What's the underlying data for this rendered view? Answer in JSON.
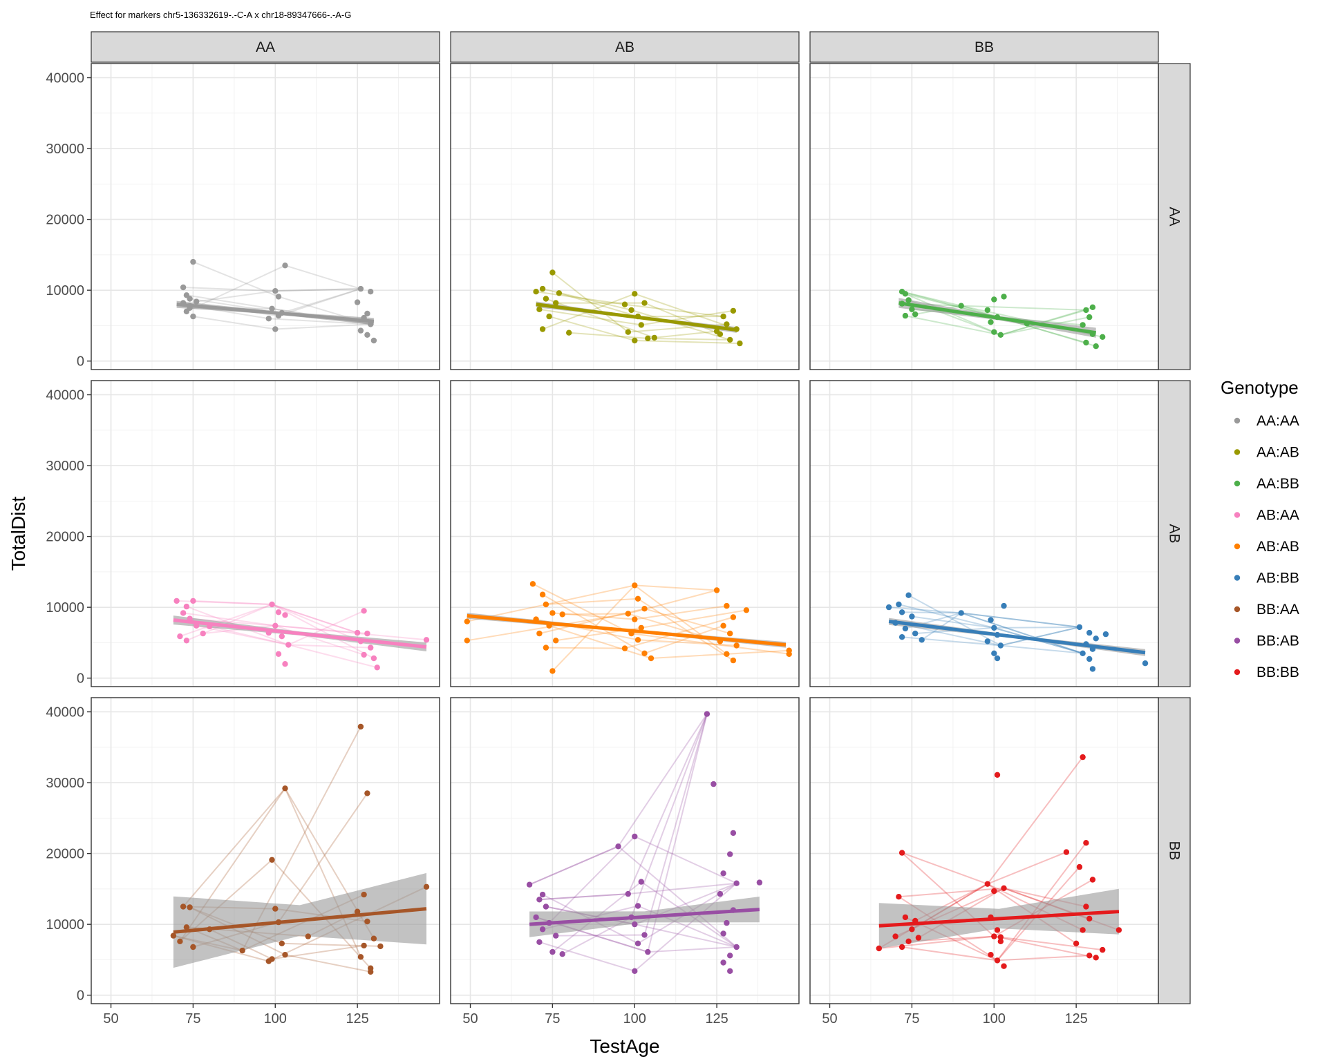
{
  "chart_data": {
    "type": "scatter",
    "title": "Effect for markers chr5-136332619-.-C-A x chr18-89347666-.-A-G",
    "xlabel": "TestAge",
    "ylabel": "TotalDist",
    "xlim": [
      44,
      150
    ],
    "ylim": [
      -1200,
      42000
    ],
    "x_ticks": [
      50,
      75,
      100,
      125
    ],
    "y_ticks": [
      0,
      10000,
      20000,
      30000,
      40000
    ],
    "x_tick_labels": [
      "50",
      "75",
      "100",
      "125"
    ],
    "y_tick_labels": [
      "0",
      "10000",
      "20000",
      "30000",
      "40000"
    ],
    "grid": true,
    "facet_cols": [
      "AA",
      "AB",
      "BB"
    ],
    "facet_rows": [
      "AA",
      "AB",
      "BB"
    ],
    "legend": {
      "title": "Genotype",
      "position": "right"
    },
    "series": [
      {
        "name": "AA:AA",
        "row": 0,
        "col": 0,
        "color": "#999999",
        "fit": {
          "x": [
            70,
            130
          ],
          "y": [
            8000,
            5600
          ]
        },
        "band": 350,
        "points": [
          [
            72,
            10400
          ],
          [
            73,
            9300
          ],
          [
            74,
            8800
          ],
          [
            75,
            14000
          ],
          [
            72,
            8200
          ],
          [
            74,
            7800
          ],
          [
            73,
            7000
          ],
          [
            75,
            6300
          ],
          [
            76,
            8400
          ],
          [
            74,
            7500
          ],
          [
            100,
            9900
          ],
          [
            101,
            9100
          ],
          [
            103,
            13500
          ],
          [
            99,
            7400
          ],
          [
            101,
            6400
          ],
          [
            100,
            4500
          ],
          [
            102,
            6800
          ],
          [
            98,
            6000
          ],
          [
            126,
            10200
          ],
          [
            129,
            9800
          ],
          [
            125,
            8300
          ],
          [
            128,
            6700
          ],
          [
            127,
            5900
          ],
          [
            129,
            5200
          ],
          [
            126,
            4300
          ],
          [
            128,
            3700
          ],
          [
            130,
            2900
          ],
          [
            127,
            6100
          ]
        ]
      },
      {
        "name": "AA:AB",
        "row": 0,
        "col": 1,
        "color": "#999900",
        "fit": {
          "x": [
            70,
            131
          ],
          "y": [
            8000,
            4400
          ]
        },
        "band": 300,
        "points": [
          [
            70,
            9800
          ],
          [
            72,
            10200
          ],
          [
            75,
            12500
          ],
          [
            73,
            8800
          ],
          [
            76,
            8200
          ],
          [
            71,
            7300
          ],
          [
            74,
            6300
          ],
          [
            72,
            4500
          ],
          [
            77,
            9600
          ],
          [
            80,
            4000
          ],
          [
            97,
            8000
          ],
          [
            100,
            9500
          ],
          [
            103,
            8200
          ],
          [
            99,
            7200
          ],
          [
            101,
            6300
          ],
          [
            102,
            5100
          ],
          [
            98,
            4100
          ],
          [
            104,
            3200
          ],
          [
            100,
            2900
          ],
          [
            106,
            3300
          ],
          [
            127,
            6300
          ],
          [
            130,
            7100
          ],
          [
            128,
            5200
          ],
          [
            131,
            4500
          ],
          [
            126,
            3800
          ],
          [
            129,
            3000
          ],
          [
            132,
            2500
          ],
          [
            125,
            4200
          ]
        ]
      },
      {
        "name": "AA:BB",
        "row": 0,
        "col": 2,
        "color": "#4DAF4A",
        "fit": {
          "x": [
            71,
            131
          ],
          "y": [
            8200,
            4000
          ]
        },
        "band": 500,
        "points": [
          [
            72,
            9800
          ],
          [
            73,
            9500
          ],
          [
            74,
            8600
          ],
          [
            72,
            8100
          ],
          [
            75,
            7300
          ],
          [
            73,
            6400
          ],
          [
            76,
            6600
          ],
          [
            90,
            7800
          ],
          [
            98,
            7200
          ],
          [
            100,
            8700
          ],
          [
            101,
            6200
          ],
          [
            99,
            5500
          ],
          [
            100,
            4100
          ],
          [
            102,
            3700
          ],
          [
            103,
            9100
          ],
          [
            110,
            5300
          ],
          [
            128,
            7200
          ],
          [
            130,
            7600
          ],
          [
            129,
            6200
          ],
          [
            127,
            5100
          ],
          [
            130,
            3800
          ],
          [
            128,
            2600
          ],
          [
            131,
            2100
          ],
          [
            133,
            3400
          ]
        ]
      },
      {
        "name": "AB:AA",
        "row": 1,
        "col": 0,
        "color": "#F781BF",
        "fit": {
          "x": [
            69,
            146
          ],
          "y": [
            8200,
            4400
          ]
        },
        "band": 450,
        "points": [
          [
            70,
            10900
          ],
          [
            72,
            9200
          ],
          [
            73,
            10100
          ],
          [
            75,
            10900
          ],
          [
            74,
            8400
          ],
          [
            76,
            7400
          ],
          [
            71,
            5900
          ],
          [
            78,
            6300
          ],
          [
            80,
            7300
          ],
          [
            73,
            5300
          ],
          [
            99,
            10400
          ],
          [
            101,
            9300
          ],
          [
            103,
            8900
          ],
          [
            100,
            7400
          ],
          [
            98,
            6400
          ],
          [
            102,
            5900
          ],
          [
            104,
            4700
          ],
          [
            101,
            3400
          ],
          [
            103,
            2000
          ],
          [
            125,
            6400
          ],
          [
            127,
            9500
          ],
          [
            128,
            6300
          ],
          [
            126,
            5200
          ],
          [
            129,
            4300
          ],
          [
            127,
            3300
          ],
          [
            130,
            2800
          ],
          [
            131,
            1500
          ],
          [
            146,
            5400
          ]
        ]
      },
      {
        "name": "AB:AB",
        "row": 1,
        "col": 1,
        "color": "#FF7F00",
        "fit": {
          "x": [
            49,
            146
          ],
          "y": [
            8800,
            4700
          ]
        },
        "band": 300,
        "points": [
          [
            49,
            8000
          ],
          [
            49,
            5300
          ],
          [
            69,
            13300
          ],
          [
            72,
            11800
          ],
          [
            73,
            10400
          ],
          [
            75,
            9200
          ],
          [
            70,
            8300
          ],
          [
            74,
            7400
          ],
          [
            71,
            6300
          ],
          [
            76,
            5300
          ],
          [
            73,
            4300
          ],
          [
            75,
            1000
          ],
          [
            78,
            9000
          ],
          [
            100,
            13100
          ],
          [
            101,
            11200
          ],
          [
            103,
            9800
          ],
          [
            98,
            9100
          ],
          [
            100,
            8300
          ],
          [
            102,
            7100
          ],
          [
            99,
            6300
          ],
          [
            101,
            5400
          ],
          [
            97,
            4200
          ],
          [
            103,
            3500
          ],
          [
            105,
            2800
          ],
          [
            125,
            12400
          ],
          [
            128,
            10200
          ],
          [
            130,
            8600
          ],
          [
            127,
            7400
          ],
          [
            129,
            6300
          ],
          [
            126,
            5200
          ],
          [
            131,
            4600
          ],
          [
            128,
            3400
          ],
          [
            130,
            2500
          ],
          [
            134,
            9600
          ],
          [
            147,
            3400
          ],
          [
            147,
            3900
          ]
        ]
      },
      {
        "name": "AB:BB",
        "row": 1,
        "col": 2,
        "color": "#377EB8",
        "fit": {
          "x": [
            68,
            146
          ],
          "y": [
            8000,
            3600
          ]
        },
        "band": 350,
        "points": [
          [
            68,
            10000
          ],
          [
            71,
            10400
          ],
          [
            74,
            11700
          ],
          [
            72,
            9300
          ],
          [
            75,
            8700
          ],
          [
            70,
            7800
          ],
          [
            73,
            7000
          ],
          [
            76,
            6300
          ],
          [
            72,
            5800
          ],
          [
            78,
            5400
          ],
          [
            90,
            9200
          ],
          [
            99,
            8200
          ],
          [
            103,
            10200
          ],
          [
            100,
            7100
          ],
          [
            101,
            6100
          ],
          [
            98,
            5200
          ],
          [
            102,
            4600
          ],
          [
            100,
            3500
          ],
          [
            101,
            2800
          ],
          [
            126,
            7200
          ],
          [
            129,
            6400
          ],
          [
            131,
            5600
          ],
          [
            128,
            4800
          ],
          [
            130,
            4100
          ],
          [
            127,
            3500
          ],
          [
            129,
            2700
          ],
          [
            130,
            1300
          ],
          [
            146,
            2100
          ],
          [
            134,
            6200
          ]
        ]
      },
      {
        "name": "BB:AA",
        "row": 2,
        "col": 0,
        "color": "#A65628",
        "fit": {
          "x": [
            69,
            146
          ],
          "y": [
            8900,
            12200
          ]
        },
        "band": 3600,
        "points": [
          [
            69,
            8400
          ],
          [
            72,
            12500
          ],
          [
            74,
            12400
          ],
          [
            73,
            9600
          ],
          [
            71,
            7600
          ],
          [
            75,
            6800
          ],
          [
            80,
            9300
          ],
          [
            90,
            6300
          ],
          [
            98,
            4800
          ],
          [
            99,
            19100
          ],
          [
            103,
            29200
          ],
          [
            100,
            12200
          ],
          [
            101,
            10300
          ],
          [
            102,
            7300
          ],
          [
            103,
            5700
          ],
          [
            99,
            5100
          ],
          [
            110,
            8300
          ],
          [
            126,
            37900
          ],
          [
            128,
            28500
          ],
          [
            127,
            14200
          ],
          [
            125,
            11800
          ],
          [
            128,
            10400
          ],
          [
            130,
            8000
          ],
          [
            127,
            7000
          ],
          [
            126,
            5400
          ],
          [
            129,
            3800
          ],
          [
            129,
            3300
          ],
          [
            132,
            6900
          ],
          [
            146,
            15300
          ]
        ]
      },
      {
        "name": "BB:AB",
        "row": 2,
        "col": 1,
        "color": "#984EA3",
        "fit": {
          "x": [
            68,
            138
          ],
          "y": [
            10000,
            12100
          ]
        },
        "band": 1300,
        "points": [
          [
            68,
            15600
          ],
          [
            71,
            13500
          ],
          [
            73,
            12500
          ],
          [
            70,
            11000
          ],
          [
            74,
            10200
          ],
          [
            72,
            9300
          ],
          [
            76,
            8400
          ],
          [
            71,
            7500
          ],
          [
            75,
            6100
          ],
          [
            78,
            5800
          ],
          [
            72,
            14200
          ],
          [
            95,
            21000
          ],
          [
            100,
            22400
          ],
          [
            102,
            16000
          ],
          [
            98,
            14300
          ],
          [
            101,
            12600
          ],
          [
            99,
            11000
          ],
          [
            100,
            10000
          ],
          [
            103,
            8500
          ],
          [
            101,
            7300
          ],
          [
            104,
            6100
          ],
          [
            100,
            3400
          ],
          [
            122,
            39700
          ],
          [
            124,
            29800
          ],
          [
            130,
            22900
          ],
          [
            129,
            19900
          ],
          [
            127,
            17200
          ],
          [
            131,
            15800
          ],
          [
            126,
            14300
          ],
          [
            130,
            12000
          ],
          [
            128,
            10200
          ],
          [
            127,
            8700
          ],
          [
            131,
            6800
          ],
          [
            129,
            5600
          ],
          [
            127,
            4600
          ],
          [
            129,
            3400
          ],
          [
            138,
            15900
          ]
        ]
      },
      {
        "name": "BB:BB",
        "row": 2,
        "col": 2,
        "color": "#E41A1C",
        "fit": {
          "x": [
            65,
            138
          ],
          "y": [
            9800,
            11800
          ]
        },
        "band": 2300,
        "points": [
          [
            65,
            6600
          ],
          [
            71,
            13900
          ],
          [
            72,
            20100
          ],
          [
            73,
            11000
          ],
          [
            75,
            9300
          ],
          [
            70,
            8300
          ],
          [
            74,
            7600
          ],
          [
            72,
            6800
          ],
          [
            76,
            10500
          ],
          [
            77,
            8100
          ],
          [
            98,
            15700
          ],
          [
            101,
            31100
          ],
          [
            100,
            14700
          ],
          [
            103,
            15100
          ],
          [
            99,
            11000
          ],
          [
            101,
            9200
          ],
          [
            100,
            8300
          ],
          [
            102,
            7600
          ],
          [
            99,
            5700
          ],
          [
            101,
            4900
          ],
          [
            102,
            8200
          ],
          [
            103,
            4100
          ],
          [
            122,
            20200
          ],
          [
            127,
            33600
          ],
          [
            128,
            21500
          ],
          [
            126,
            18100
          ],
          [
            130,
            16300
          ],
          [
            128,
            12500
          ],
          [
            129,
            10800
          ],
          [
            127,
            9200
          ],
          [
            125,
            7300
          ],
          [
            129,
            5600
          ],
          [
            131,
            5300
          ],
          [
            133,
            6400
          ],
          [
            138,
            9200
          ]
        ]
      }
    ]
  }
}
